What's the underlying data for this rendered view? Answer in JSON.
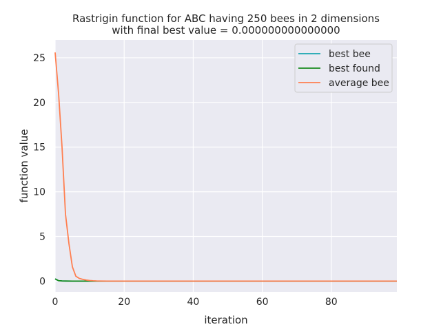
{
  "chart_data": {
    "type": "line",
    "title": "Rastrigin function for ABC having 250 bees in 2 dimensions\nwith final best value = 0.000000000000000",
    "title_lines": [
      "Rastrigin function for ABC having 250 bees in 2 dimensions",
      "with final best value = 0.000000000000000"
    ],
    "xlabel": "iteration",
    "ylabel": "function value",
    "xlim": [
      0,
      99
    ],
    "ylim": [
      -1.2,
      27
    ],
    "x_ticks": [
      0,
      20,
      40,
      60,
      80
    ],
    "y_ticks": [
      0,
      5,
      10,
      15,
      20,
      25
    ],
    "grid": true,
    "legend_position": "top-right",
    "series": [
      {
        "name": "best bee",
        "color": "#17a6b0",
        "x": [
          0,
          1,
          2,
          3,
          5,
          10,
          20,
          40,
          60,
          80,
          99
        ],
        "y": [
          0.25,
          0.05,
          0.02,
          0.01,
          0.0,
          0.0,
          0.0,
          0.0,
          0.0,
          0.0,
          0.0
        ]
      },
      {
        "name": "best found",
        "color": "#178a1d",
        "x": [
          0,
          1,
          2,
          3,
          5,
          10,
          20,
          40,
          60,
          80,
          99
        ],
        "y": [
          0.25,
          0.05,
          0.02,
          0.01,
          0.0,
          0.0,
          0.0,
          0.0,
          0.0,
          0.0,
          0.0
        ]
      },
      {
        "name": "average bee",
        "color": "#ff7f50",
        "x": [
          0,
          1,
          2,
          3,
          4,
          5,
          6,
          7,
          8,
          9,
          10,
          11,
          12,
          13,
          15,
          20,
          40,
          60,
          80,
          99
        ],
        "y": [
          25.6,
          21.0,
          15.0,
          7.5,
          4.2,
          1.6,
          0.55,
          0.3,
          0.2,
          0.12,
          0.07,
          0.04,
          0.02,
          0.01,
          0.0,
          0.0,
          0.0,
          0.0,
          0.0,
          0.0
        ]
      }
    ]
  }
}
